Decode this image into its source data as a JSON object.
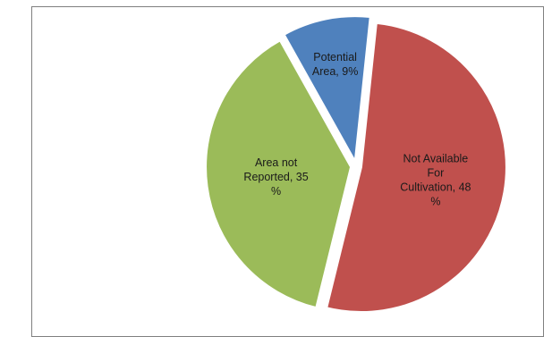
{
  "chart_data": {
    "type": "pie",
    "title": "",
    "slices": [
      {
        "key": "not-available",
        "label_lines": [
          "Not Available",
          "For",
          "Cultivation, 48",
          "%"
        ],
        "value": 48,
        "color": "#c0504d",
        "exploded": true
      },
      {
        "key": "area-not-reported",
        "label_lines": [
          "Area not",
          "Reported, 35",
          "%"
        ],
        "value": 35,
        "color": "#9bbb59",
        "exploded": true
      },
      {
        "key": "potential-area",
        "label_lines": [
          "Potential",
          "Area, 9%"
        ],
        "value": 9,
        "color": "#4f81bd",
        "exploded": true
      }
    ]
  }
}
